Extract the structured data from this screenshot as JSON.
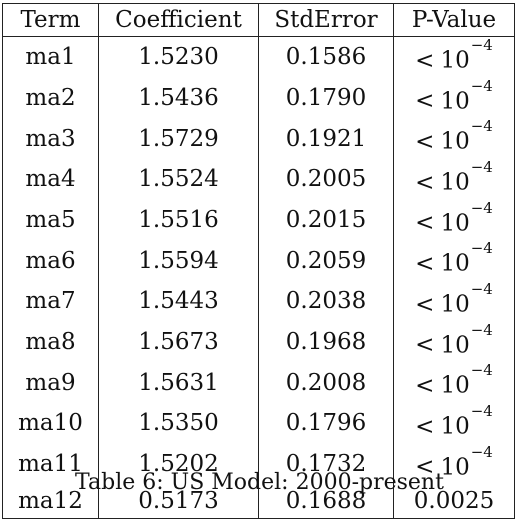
{
  "table": {
    "headers": [
      "Term",
      "Coefficient",
      "StdError",
      "P-Value"
    ],
    "rows": [
      {
        "term": "ma1",
        "coefficient": "1.5230",
        "std_error": "0.1586",
        "p_value": {
          "lt": "<",
          "base": "10",
          "exp": "−4"
        }
      },
      {
        "term": "ma2",
        "coefficient": "1.5436",
        "std_error": "0.1790",
        "p_value": {
          "lt": "<",
          "base": "10",
          "exp": "−4"
        }
      },
      {
        "term": "ma3",
        "coefficient": "1.5729",
        "std_error": "0.1921",
        "p_value": {
          "lt": "<",
          "base": "10",
          "exp": "−4"
        }
      },
      {
        "term": "ma4",
        "coefficient": "1.5524",
        "std_error": "0.2005",
        "p_value": {
          "lt": "<",
          "base": "10",
          "exp": "−4"
        }
      },
      {
        "term": "ma5",
        "coefficient": "1.5516",
        "std_error": "0.2015",
        "p_value": {
          "lt": "<",
          "base": "10",
          "exp": "−4"
        }
      },
      {
        "term": "ma6",
        "coefficient": "1.5594",
        "std_error": "0.2059",
        "p_value": {
          "lt": "<",
          "base": "10",
          "exp": "−4"
        }
      },
      {
        "term": "ma7",
        "coefficient": "1.5443",
        "std_error": "0.2038",
        "p_value": {
          "lt": "<",
          "base": "10",
          "exp": "−4"
        }
      },
      {
        "term": "ma8",
        "coefficient": "1.5673",
        "std_error": "0.1968",
        "p_value": {
          "lt": "<",
          "base": "10",
          "exp": "−4"
        }
      },
      {
        "term": "ma9",
        "coefficient": "1.5631",
        "std_error": "0.2008",
        "p_value": {
          "lt": "<",
          "base": "10",
          "exp": "−4"
        }
      },
      {
        "term": "ma10",
        "coefficient": "1.5350",
        "std_error": "0.1796",
        "p_value": {
          "lt": "<",
          "base": "10",
          "exp": "−4"
        }
      },
      {
        "term": "ma11",
        "coefficient": "1.5202",
        "std_error": "0.1732",
        "p_value": {
          "lt": "<",
          "base": "10",
          "exp": "−4"
        }
      },
      {
        "term": "ma12",
        "coefficient": "0.5173",
        "std_error": "0.1688",
        "p_value": {
          "text": "0.0025"
        }
      }
    ]
  },
  "caption": "Table 6: US Model: 2000-present"
}
